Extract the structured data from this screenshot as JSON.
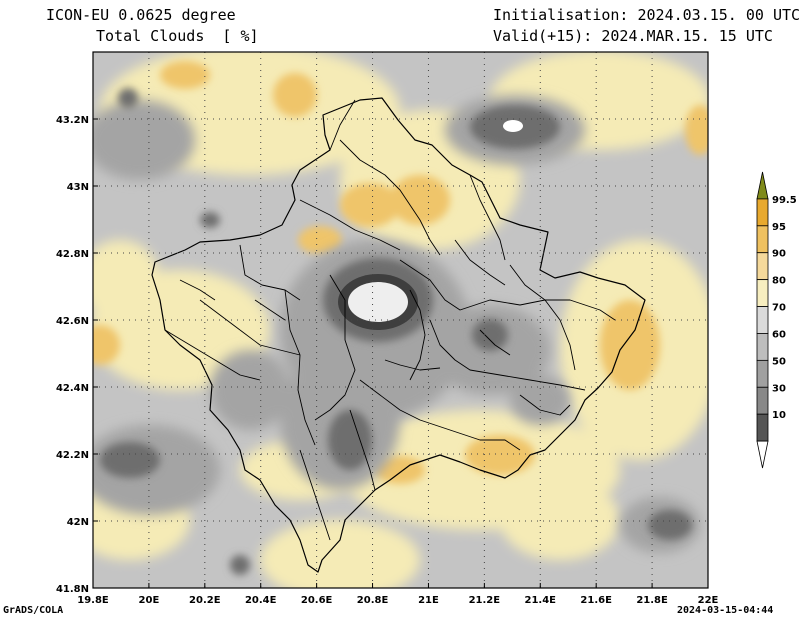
{
  "header": {
    "model": "ICON-EU 0.0625 degree",
    "variable": "Total Clouds  [ %]",
    "init": "Initialisation: 2024.03.15. 00 UTC",
    "valid": "Valid(+15): 2024.MAR.15. 15 UTC"
  },
  "footer": {
    "credit": "GrADS/COLA",
    "timestamp": "2024-03-15-04:44"
  },
  "axes": {
    "x_ticks": [
      "19.8E",
      "20E",
      "20.2E",
      "20.4E",
      "20.6E",
      "20.8E",
      "21E",
      "21.2E",
      "21.4E",
      "21.6E",
      "21.8E",
      "22E"
    ],
    "y_ticks": [
      "41.8N",
      "42N",
      "42.2N",
      "42.4N",
      "42.6N",
      "42.8N",
      "43N",
      "43.2N"
    ],
    "lon_range": [
      19.8,
      22.0
    ],
    "lat_range": [
      41.8,
      43.4
    ]
  },
  "legend": {
    "labels": [
      "99.5",
      "95",
      "90",
      "80",
      "70",
      "60",
      "50",
      "30",
      "10"
    ],
    "colors": [
      "#7f8a1a",
      "#e8a92e",
      "#efc160",
      "#f5d99b",
      "#f7eec0",
      "#dadada",
      "#bdbdbd",
      "#a0a0a0",
      "#888888",
      "#555555",
      "#ffffff"
    ]
  },
  "colors": {
    "cloud_base": "#c4c4c4",
    "border": "#000000"
  }
}
